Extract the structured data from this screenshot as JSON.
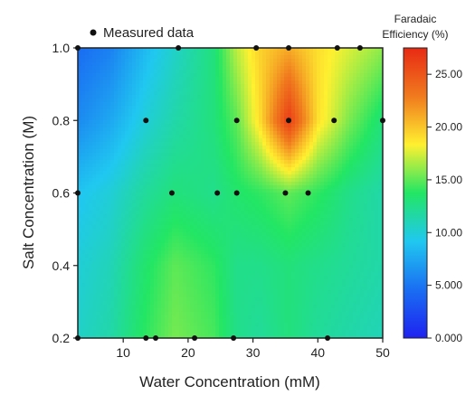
{
  "chart_data": {
    "type": "heatmap",
    "title": "",
    "xlabel": "Water Concentration (mM)",
    "ylabel": "Salt Concentration (M)",
    "xlim": [
      3,
      50
    ],
    "ylim": [
      0.2,
      1.0
    ],
    "xticks": [
      10,
      20,
      30,
      40,
      50
    ],
    "yticks": [
      0.2,
      0.4,
      0.6,
      0.8,
      1.0
    ],
    "xtick_labels": [
      "10",
      "20",
      "30",
      "40",
      "50"
    ],
    "ytick_labels": [
      "0.2",
      "0.4",
      "0.6",
      "0.8",
      "1.0"
    ],
    "legend": {
      "label": "Measured data",
      "placement": "top-left"
    },
    "colorbar": {
      "title_line1": "Faradaic",
      "title_line2": "Efficiency (%)",
      "range": [
        0,
        27.5
      ],
      "ticks": [
        0,
        5,
        10,
        15,
        20,
        25
      ],
      "tick_labels": [
        "0.000",
        "5.000",
        "10.00",
        "15.00",
        "20.00",
        "25.00"
      ],
      "colors": [
        "#1e22f0",
        "#1a6ef2",
        "#20c8f0",
        "#22e664",
        "#fff030",
        "#f07a1e",
        "#e82a14"
      ]
    },
    "grid": false,
    "measured_points": [
      {
        "x": 3,
        "y": 1.0
      },
      {
        "x": 18.5,
        "y": 1.0
      },
      {
        "x": 30.5,
        "y": 1.0
      },
      {
        "x": 35.5,
        "y": 1.0
      },
      {
        "x": 43,
        "y": 1.0
      },
      {
        "x": 46.5,
        "y": 1.0
      },
      {
        "x": 13.5,
        "y": 0.8
      },
      {
        "x": 27.5,
        "y": 0.8
      },
      {
        "x": 35.5,
        "y": 0.8
      },
      {
        "x": 42.5,
        "y": 0.8
      },
      {
        "x": 50,
        "y": 0.8
      },
      {
        "x": 3,
        "y": 0.6
      },
      {
        "x": 17.5,
        "y": 0.6
      },
      {
        "x": 24.5,
        "y": 0.6
      },
      {
        "x": 27.5,
        "y": 0.6
      },
      {
        "x": 35,
        "y": 0.6
      },
      {
        "x": 38.5,
        "y": 0.6
      },
      {
        "x": 3,
        "y": 0.2
      },
      {
        "x": 13.5,
        "y": 0.2
      },
      {
        "x": 15,
        "y": 0.2
      },
      {
        "x": 21,
        "y": 0.2
      },
      {
        "x": 27,
        "y": 0.2
      },
      {
        "x": 41.5,
        "y": 0.2
      }
    ],
    "grid_x": [
      3,
      8,
      13.5,
      18,
      24,
      27.5,
      31,
      35.5,
      40,
      45,
      50
    ],
    "grid_y": [
      0.2,
      0.4,
      0.6,
      0.8,
      1.0
    ],
    "values": [
      [
        10.5,
        11.5,
        14.0,
        15.5,
        14.5,
        12.5,
        12.0,
        13.0,
        12.0,
        11.5,
        11.0
      ],
      [
        10.0,
        11.0,
        13.5,
        15.0,
        14.0,
        12.5,
        12.5,
        13.0,
        12.5,
        12.0,
        11.5
      ],
      [
        9.0,
        10.0,
        12.0,
        13.0,
        12.5,
        13.5,
        14.0,
        15.0,
        14.0,
        12.5,
        11.5
      ],
      [
        6.0,
        7.5,
        10.0,
        11.5,
        13.0,
        15.0,
        19.0,
        26.5,
        19.0,
        15.5,
        13.0
      ],
      [
        4.5,
        5.5,
        8.5,
        10.5,
        13.0,
        17.0,
        19.5,
        21.0,
        19.0,
        17.5,
        16.0
      ]
    ]
  }
}
